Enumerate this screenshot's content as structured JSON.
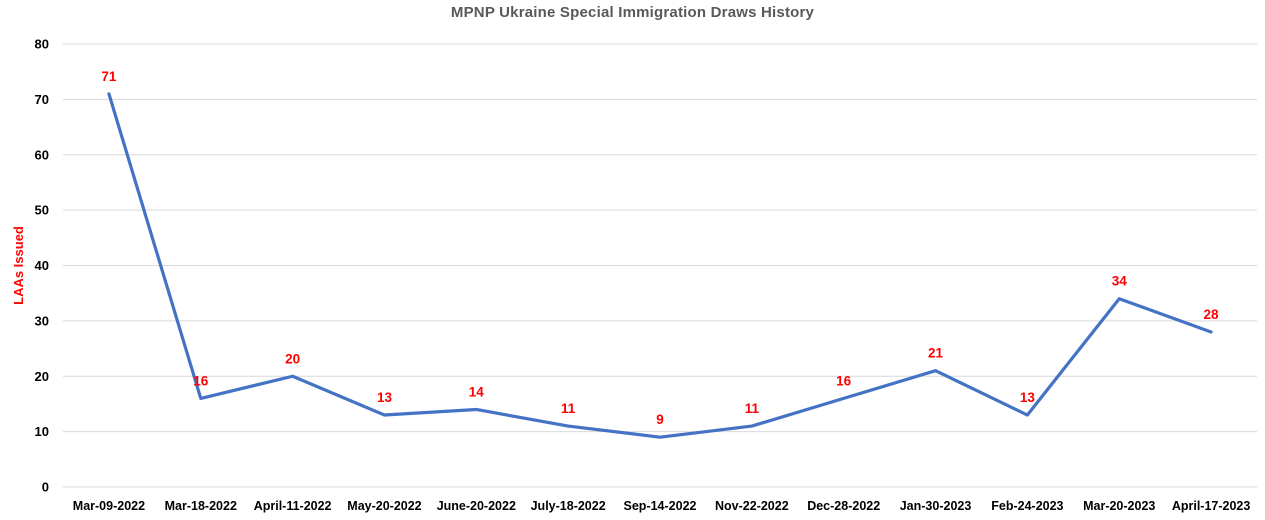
{
  "page": {
    "background": "#FFFFFF"
  },
  "chart_data": {
    "type": "line",
    "title": "MPNP Ukraine Special Immigration Draws History",
    "ylabel": "LAAs Issued",
    "xlabel": "",
    "categories": [
      "Mar-09-2022",
      "Mar-18-2022",
      "April-11-2022",
      "May-20-2022",
      "June-20-2022",
      "July-18-2022",
      "Sep-14-2022",
      "Nov-22-2022",
      "Dec-28-2022",
      "Jan-30-2023",
      "Feb-24-2023",
      "Mar-20-2023",
      "April-17-2023"
    ],
    "values": [
      71,
      16,
      20,
      13,
      14,
      11,
      9,
      11,
      16,
      21,
      13,
      34,
      28
    ],
    "ylim": [
      0,
      80
    ],
    "ytick_step": 10,
    "yticks": [
      0,
      10,
      20,
      30,
      40,
      50,
      60,
      70,
      80
    ],
    "grid": true,
    "legend": "none",
    "data_labels": true,
    "markers": false,
    "colors": {
      "line": "#4472C4",
      "data_label": "#FF0000",
      "tick_label": "#000000",
      "title": "#595959",
      "ylabel": "#FF0000",
      "gridline": "#D9D9D9"
    }
  }
}
